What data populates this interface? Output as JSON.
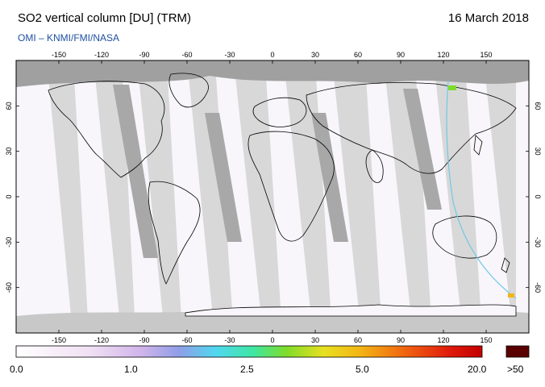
{
  "header": {
    "title": "SO2 vertical column [DU] (TRM)",
    "date": "16 March 2018",
    "credit": "OMI  –  KNMI/FMI/NASA"
  },
  "map": {
    "lon_ticks": [
      "-150",
      "-120",
      "-90",
      "-60",
      "-30",
      "0",
      "30",
      "60",
      "90",
      "120",
      "150"
    ],
    "lat_ticks": [
      "60",
      "30",
      "0",
      "-30",
      "-60"
    ],
    "colors": {
      "land": "#9e9e9e",
      "ocean_gap": "#d8d8d8",
      "data": "#f8f6fb",
      "coast": "#000000"
    }
  },
  "colorbar": {
    "labels": [
      "0.0",
      "1.0",
      "2.5",
      "5.0",
      "20.0"
    ],
    "over_label": ">50",
    "over_color": "#5a0000"
  }
}
